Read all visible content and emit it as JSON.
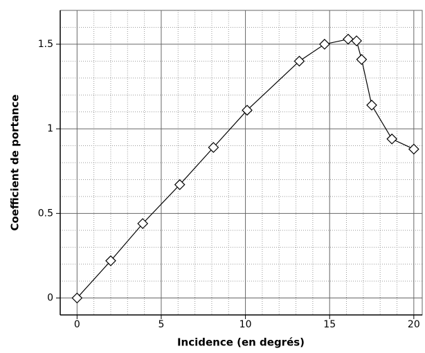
{
  "chart_data": {
    "type": "line",
    "x_label": "Incidence (en degrés)",
    "y_label": "Coefficient de portance",
    "x": [
      0,
      2.0,
      3.9,
      6.1,
      8.1,
      10.1,
      13.2,
      14.7,
      16.1,
      16.6,
      16.9,
      17.5,
      18.7,
      20.0
    ],
    "series": [
      {
        "color": "#000000",
        "values": [
          0,
          0.22,
          0.44,
          0.67,
          0.89,
          1.11,
          1.4,
          1.5,
          1.53,
          1.52,
          1.41,
          1.14,
          0.94,
          0.88
        ]
      }
    ],
    "xlim": [
      -1,
      20.5
    ],
    "ylim": [
      -0.1,
      1.7
    ],
    "xticks": [
      0,
      5,
      10,
      15,
      20
    ],
    "yticks": [
      0,
      0.5,
      1,
      1.5
    ],
    "xminorticks": [
      -1,
      1,
      2,
      3,
      4,
      6,
      7,
      8,
      9,
      11,
      12,
      13,
      14,
      16,
      17,
      18,
      19
    ],
    "yminorticks": [
      0.1,
      0.2,
      0.3,
      0.4,
      0.6,
      0.7,
      0.8,
      0.9,
      1.1,
      1.2,
      1.3,
      1.4,
      1.6
    ],
    "grid": true,
    "marker": "diamond"
  }
}
